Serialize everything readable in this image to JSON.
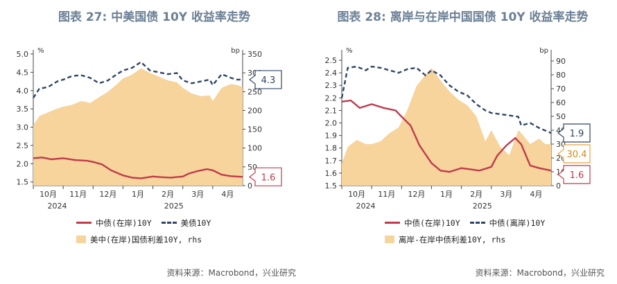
{
  "colors": {
    "orange": "#f6d49c",
    "red": "#c0394b",
    "navy": "#2e4464",
    "title": "#6b7f95",
    "callout_border": "#7e8ea3"
  },
  "panels": [
    {
      "title": "图表 27: 中美国债 10Y 收益率走势",
      "source": "资料来源：Macrobond，兴业研究",
      "legend": [
        {
          "type": "line",
          "color": "red",
          "label": "中债(在岸)10Y"
        },
        {
          "type": "dash",
          "color": "navy",
          "label": "美债10Y"
        },
        {
          "type": "area",
          "color": "orange",
          "label": "美中(在岸)国债利差10Y, rhs"
        }
      ],
      "callouts": [
        {
          "text": "4.3",
          "series": "dash"
        },
        {
          "text": "1.6",
          "series": "line"
        }
      ],
      "chart_data": {
        "type": "line",
        "left_unit": "%",
        "right_unit": "bp",
        "y_left": {
          "min": 1.4,
          "max": 5.0,
          "ticks": [
            1.5,
            2.0,
            2.5,
            3.0,
            3.5,
            4.0,
            4.5,
            5.0
          ]
        },
        "y_right": {
          "min": 0,
          "max": 350,
          "ticks": [
            0,
            50,
            100,
            150,
            200,
            250,
            300,
            350
          ]
        },
        "months": [
          "10月",
          "11月",
          "12月",
          "1月",
          "2月",
          "3月",
          "4月"
        ],
        "year_labels": [
          {
            "label": "2024",
            "month_index": 0.8
          },
          {
            "label": "2025",
            "month_index": 4.7
          }
        ],
        "x_start": 9.0,
        "x_end": 16.0,
        "series": [
          {
            "name": "中债(在岸)10Y",
            "kind": "line",
            "axis": "left",
            "x": [
              9.0,
              9.3,
              9.6,
              10.0,
              10.4,
              10.8,
              11.0,
              11.3,
              11.6,
              12.0,
              12.3,
              12.6,
              13.0,
              13.3,
              13.6,
              14.0,
              14.2,
              14.5,
              14.8,
              15.0,
              15.3,
              15.6,
              16.0
            ],
            "y": [
              2.15,
              2.17,
              2.12,
              2.15,
              2.1,
              2.08,
              2.05,
              1.98,
              1.82,
              1.68,
              1.62,
              1.6,
              1.65,
              1.63,
              1.62,
              1.65,
              1.73,
              1.8,
              1.85,
              1.82,
              1.7,
              1.66,
              1.64
            ]
          },
          {
            "name": "美债10Y",
            "kind": "dash",
            "axis": "left",
            "x": [
              9.0,
              9.2,
              9.5,
              9.8,
              10.0,
              10.3,
              10.6,
              10.9,
              11.2,
              11.5,
              11.8,
              12.0,
              12.3,
              12.6,
              12.9,
              13.2,
              13.5,
              13.8,
              14.0,
              14.3,
              14.6,
              14.9,
              15.0,
              15.3,
              15.6,
              15.8,
              16.0
            ],
            "y": [
              3.8,
              4.05,
              4.1,
              4.25,
              4.3,
              4.4,
              4.42,
              4.35,
              4.2,
              4.28,
              4.45,
              4.55,
              4.62,
              4.78,
              4.55,
              4.5,
              4.45,
              4.48,
              4.28,
              4.2,
              4.25,
              4.3,
              4.15,
              4.45,
              4.35,
              4.3,
              4.3
            ]
          },
          {
            "name": "美中(在岸)国债利差10Y, rhs",
            "kind": "area",
            "axis": "right",
            "x": [
              9.0,
              9.2,
              9.5,
              9.8,
              10.0,
              10.3,
              10.6,
              10.9,
              11.2,
              11.5,
              11.8,
              12.0,
              12.3,
              12.6,
              12.9,
              13.2,
              13.5,
              13.8,
              14.0,
              14.3,
              14.6,
              14.9,
              15.0,
              15.3,
              15.6,
              15.8,
              16.0
            ],
            "y": [
              160,
              185,
              195,
              205,
              210,
              215,
              225,
              220,
              235,
              250,
              270,
              285,
              295,
              312,
              300,
              290,
              280,
              275,
              260,
              245,
              238,
              240,
              225,
              260,
              270,
              268,
              262
            ]
          }
        ]
      }
    },
    {
      "title": "图表 28: 离岸与在岸中国国债 10Y 收益率走势",
      "source": "资料来源：Macrobond，兴业研究",
      "legend": [
        {
          "type": "line",
          "color": "red",
          "label": "中债(在岸)10Y"
        },
        {
          "type": "dash",
          "color": "navy",
          "label": "中债(离岸)10Y"
        },
        {
          "type": "area",
          "color": "orange",
          "label": "离岸-在岸中债利差10Y, rhs"
        }
      ],
      "callouts": [
        {
          "text": "1.9",
          "series": "dash"
        },
        {
          "text": "30.4",
          "series": "area"
        },
        {
          "text": "1.6",
          "series": "line"
        }
      ],
      "chart_data": {
        "type": "line",
        "left_unit": "%",
        "right_unit": "bp",
        "y_left": {
          "min": 1.5,
          "max": 2.55,
          "ticks": [
            1.5,
            1.6,
            1.7,
            1.8,
            1.9,
            2.0,
            2.1,
            2.2,
            2.3,
            2.4,
            2.5
          ]
        },
        "y_right": {
          "min": 0,
          "max": 95,
          "ticks": [
            0,
            10,
            20,
            30,
            40,
            50,
            60,
            70,
            80,
            90
          ]
        },
        "months": [
          "10月",
          "11月",
          "12月",
          "1月",
          "2月",
          "3月",
          "4月"
        ],
        "year_labels": [
          {
            "label": "2024",
            "month_index": 0.8
          },
          {
            "label": "2025",
            "month_index": 4.7
          }
        ],
        "x_start": 9.0,
        "x_end": 16.0,
        "series": [
          {
            "name": "中债(在岸)10Y",
            "kind": "line",
            "axis": "left",
            "x": [
              9.0,
              9.3,
              9.6,
              10.0,
              10.4,
              10.8,
              11.0,
              11.3,
              11.6,
              12.0,
              12.3,
              12.6,
              13.0,
              13.3,
              13.6,
              14.0,
              14.2,
              14.5,
              14.8,
              15.0,
              15.3,
              15.6,
              16.0
            ],
            "y": [
              2.17,
              2.18,
              2.12,
              2.15,
              2.12,
              2.1,
              2.05,
              1.98,
              1.82,
              1.68,
              1.62,
              1.61,
              1.64,
              1.63,
              1.62,
              1.65,
              1.74,
              1.82,
              1.88,
              1.83,
              1.66,
              1.64,
              1.62
            ]
          },
          {
            "name": "中债(离岸)10Y",
            "kind": "dash",
            "axis": "left",
            "x": [
              9.0,
              9.2,
              9.5,
              9.8,
              10.0,
              10.3,
              10.6,
              10.9,
              11.2,
              11.5,
              11.8,
              12.0,
              12.3,
              12.6,
              12.9,
              13.2,
              13.5,
              13.8,
              14.0,
              14.3,
              14.6,
              14.9,
              15.0,
              15.3,
              15.6,
              15.8,
              16.0
            ],
            "y": [
              2.2,
              2.44,
              2.45,
              2.42,
              2.45,
              2.44,
              2.42,
              2.4,
              2.43,
              2.44,
              2.38,
              2.42,
              2.38,
              2.3,
              2.25,
              2.22,
              2.15,
              2.1,
              2.08,
              2.07,
              2.06,
              2.05,
              1.98,
              2.0,
              1.96,
              1.94,
              1.92
            ]
          },
          {
            "name": "离岸-在岸中债利差10Y, rhs",
            "kind": "area",
            "axis": "right",
            "x": [
              9.0,
              9.2,
              9.5,
              9.8,
              10.0,
              10.3,
              10.6,
              10.9,
              11.2,
              11.5,
              11.8,
              12.0,
              12.3,
              12.6,
              12.9,
              13.2,
              13.5,
              13.8,
              14.0,
              14.3,
              14.6,
              14.9,
              15.0,
              15.3,
              15.6,
              15.8,
              16.0
            ],
            "y": [
              16,
              28,
              33,
              30,
              30,
              32,
              38,
              42,
              55,
              72,
              80,
              85,
              76,
              68,
              62,
              58,
              50,
              32,
              40,
              28,
              22,
              40,
              38,
              30,
              34,
              30,
              30
            ]
          }
        ]
      }
    }
  ]
}
